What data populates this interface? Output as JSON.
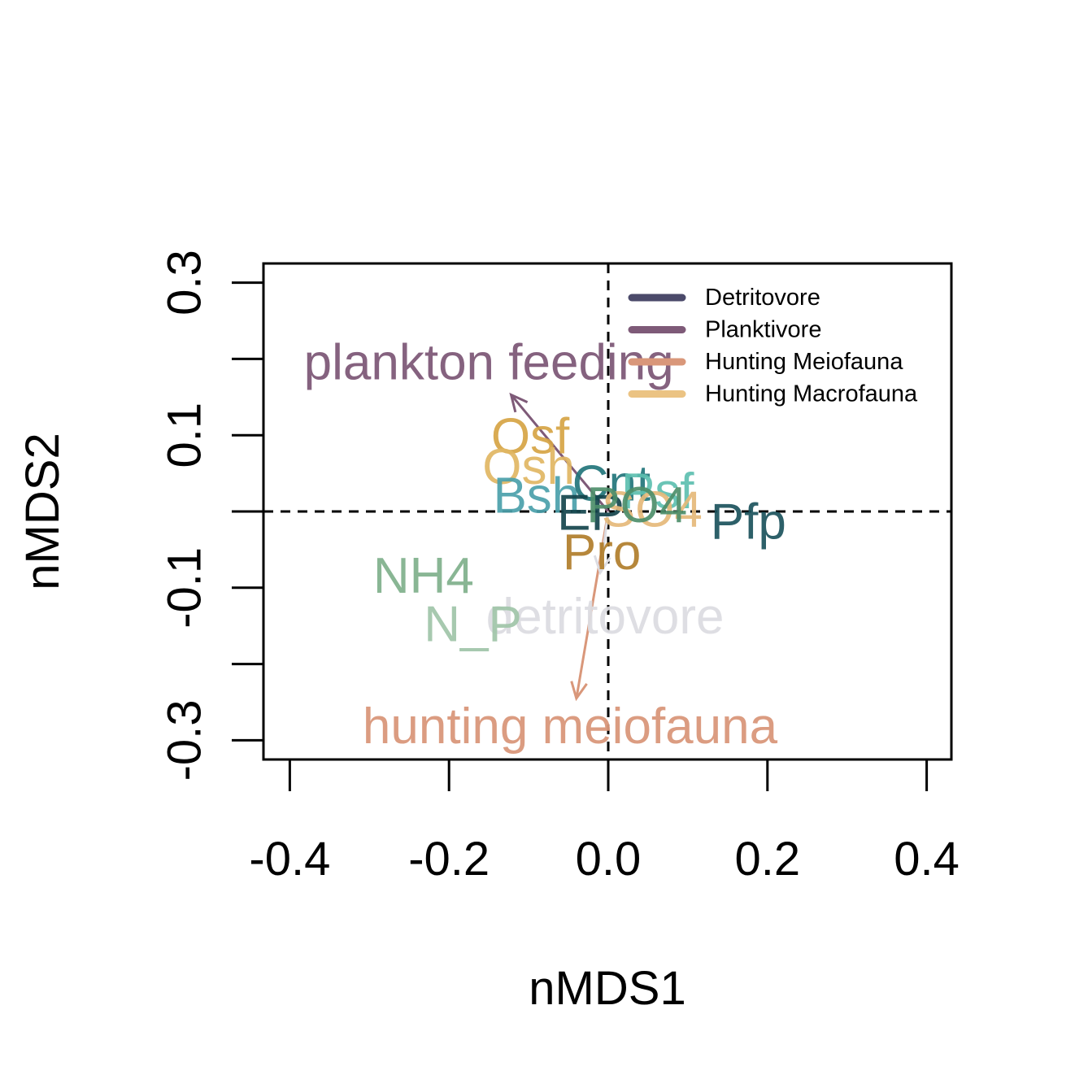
{
  "chart_data": {
    "type": "scatter",
    "title": "",
    "xlabel": "nMDS1",
    "ylabel": "nMDS2",
    "xlim": [
      -0.4,
      0.4
    ],
    "ylim": [
      -0.3,
      0.3
    ],
    "x_ticks": [
      -0.4,
      -0.2,
      0.0,
      0.2,
      0.4
    ],
    "y_ticks": [
      -0.3,
      -0.2,
      -0.1,
      0.0,
      0.1,
      0.2,
      0.3
    ],
    "x_tick_labels": [
      "-0.4",
      "-0.2",
      "0.0",
      "0.2",
      "0.4"
    ],
    "y_tick_labels": [
      {
        "value": 0.3,
        "label": "0.3"
      },
      {
        "value": 0.1,
        "label": "0.1"
      },
      {
        "value": -0.1,
        "label": "-0.1"
      },
      {
        "value": -0.3,
        "label": "-0.3"
      }
    ],
    "grid": false,
    "reference_lines": {
      "x": 0,
      "y": 0,
      "style": "dashed"
    },
    "legend": {
      "position": "top-right",
      "entries": [
        {
          "label": "Detritovore",
          "color": "#4b4a6a"
        },
        {
          "label": "Planktivore",
          "color": "#7e5a78"
        },
        {
          "label": "Hunting Meiofauna",
          "color": "#d9977a"
        },
        {
          "label": "Hunting Macrofauna",
          "color": "#ebc383"
        }
      ]
    },
    "vectors": [
      {
        "label": "plankton feeding",
        "x": -0.122,
        "y": 0.153,
        "label_x": -0.15,
        "label_y": 0.195,
        "color": "#7e5a78"
      },
      {
        "label": "hunting meiofauna",
        "x": -0.04,
        "y": -0.245,
        "label_x": -0.048,
        "label_y": -0.282,
        "color": "#d9977a"
      },
      {
        "label": "detritovore",
        "x": -0.01,
        "y": -0.08,
        "label_x": -0.004,
        "label_y": -0.138,
        "color": "#dcdce2"
      }
    ],
    "points": [
      {
        "label": "Osf",
        "x": -0.098,
        "y": 0.098,
        "color": "#d6a444"
      },
      {
        "label": "Osh",
        "x": -0.1,
        "y": 0.058,
        "color": "#e1b663"
      },
      {
        "label": "Bsh",
        "x": -0.09,
        "y": 0.02,
        "color": "#4aa0aa"
      },
      {
        "label": "Cnt",
        "x": 0.004,
        "y": 0.036,
        "color": "#22757b"
      },
      {
        "label": "Psf",
        "x": 0.062,
        "y": 0.026,
        "color": "#5dbfb0"
      },
      {
        "label": "EP",
        "x": -0.022,
        "y": -0.002,
        "color": "#14444c"
      },
      {
        "label": "SO4",
        "x": 0.055,
        "y": 0.002,
        "color": "#e5b97a"
      },
      {
        "label": "PO4",
        "x": 0.036,
        "y": 0.008,
        "color": "#4d8e6a"
      },
      {
        "label": "Pfp",
        "x": 0.176,
        "y": -0.014,
        "color": "#1b525c"
      },
      {
        "label": "Pro",
        "x": -0.008,
        "y": -0.054,
        "color": "#b07d2a"
      },
      {
        "label": "NH4",
        "x": -0.232,
        "y": -0.085,
        "color": "#7fb08b"
      },
      {
        "label": "N_P",
        "x": -0.17,
        "y": -0.148,
        "color": "#9fc4a8"
      }
    ]
  }
}
